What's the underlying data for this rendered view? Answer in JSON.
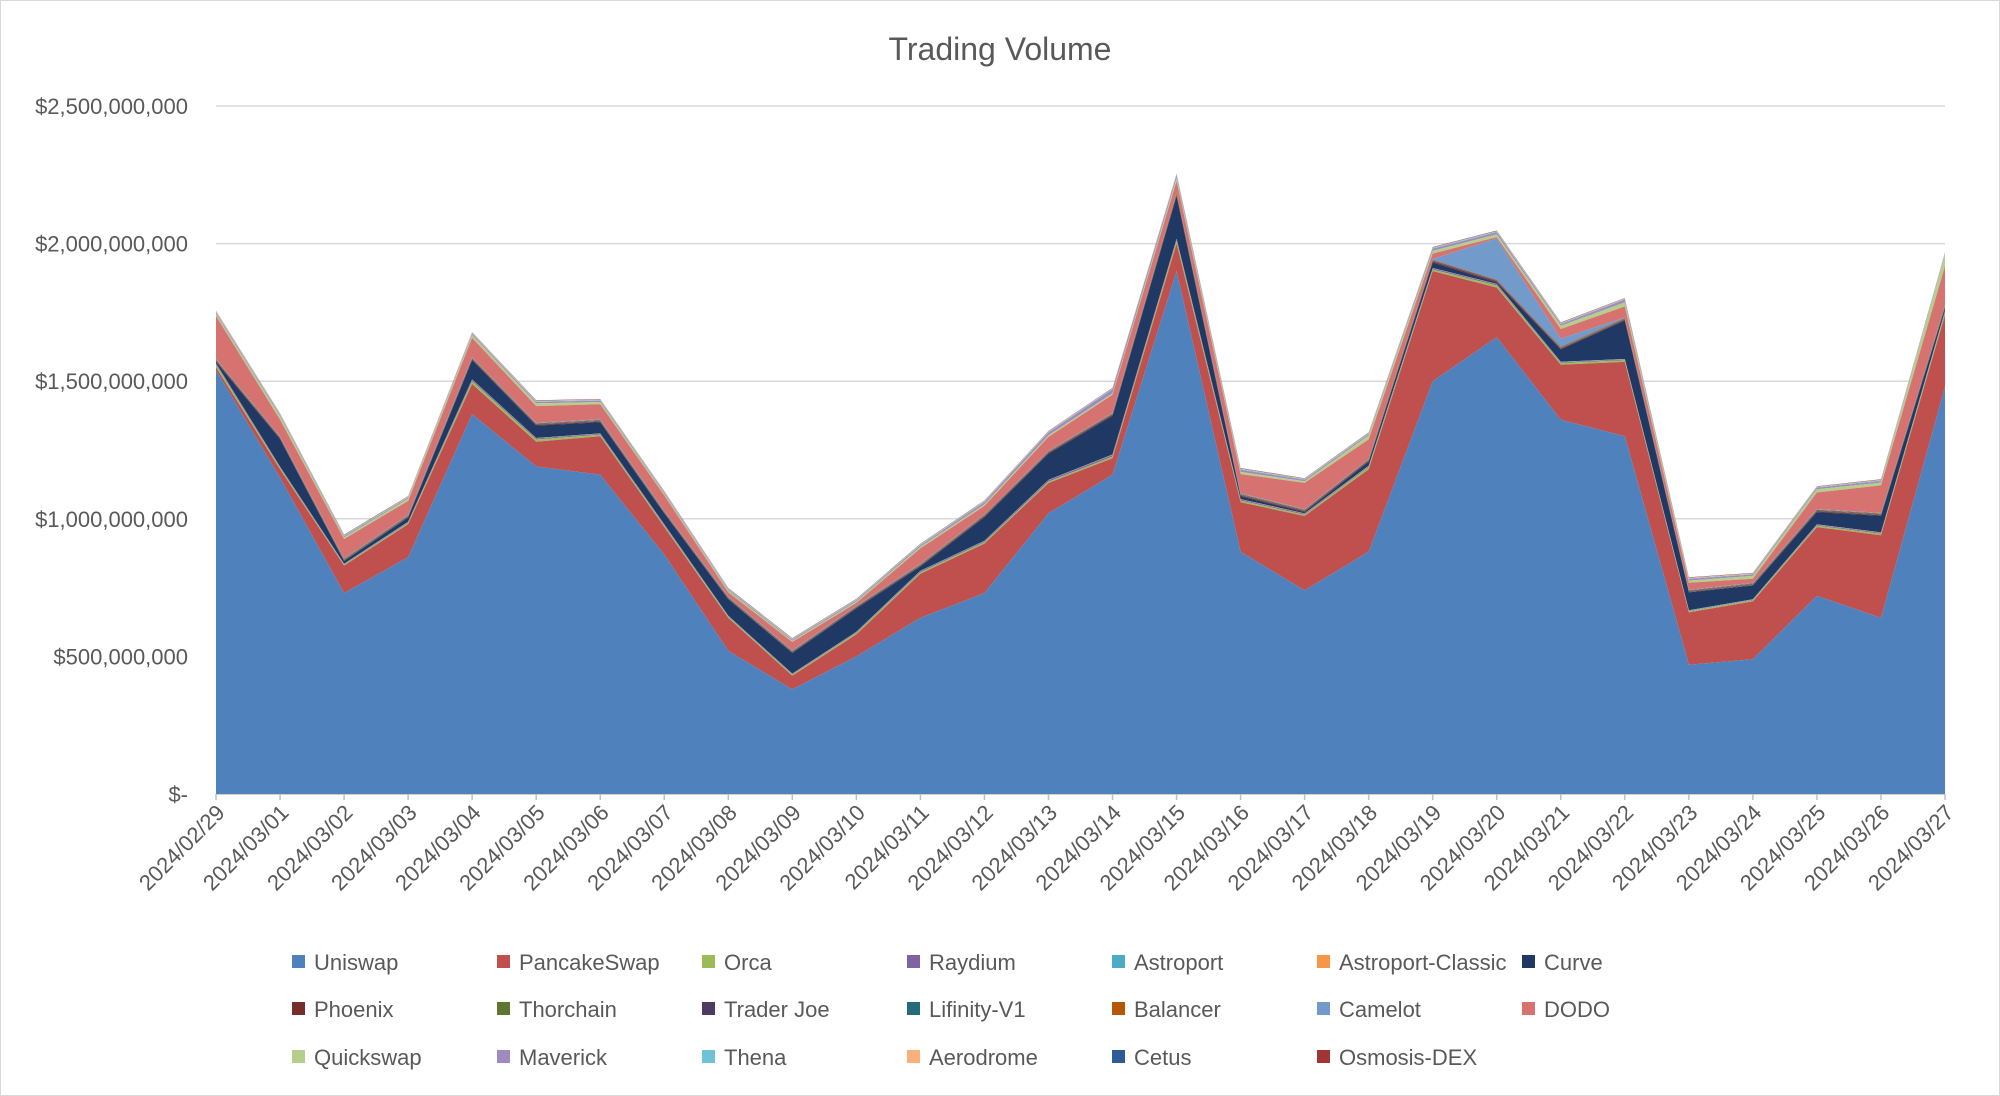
{
  "chart_data": {
    "type": "area",
    "stacked": true,
    "title": "Trading Volume",
    "xlabel": "",
    "ylabel": "",
    "ylim": [
      0,
      2500000000
    ],
    "yticks": [
      0,
      500000000,
      1000000000,
      1500000000,
      2000000000,
      2500000000
    ],
    "ytick_labels": [
      "$-",
      "$500,000,000",
      "$1,000,000,000",
      "$1,500,000,000",
      "$2,000,000,000",
      "$2,500,000,000"
    ],
    "grid": true,
    "legend_position": "bottom",
    "categories": [
      "2024/02/29",
      "2024/03/01",
      "2024/03/02",
      "2024/03/03",
      "2024/03/04",
      "2024/03/05",
      "2024/03/06",
      "2024/03/07",
      "2024/03/08",
      "2024/03/09",
      "2024/03/10",
      "2024/03/11",
      "2024/03/12",
      "2024/03/13",
      "2024/03/14",
      "2024/03/15",
      "2024/03/16",
      "2024/03/17",
      "2024/03/18",
      "2024/03/19",
      "2024/03/20",
      "2024/03/21",
      "2024/03/22",
      "2024/03/23",
      "2024/03/24",
      "2024/03/25",
      "2024/03/26",
      "2024/03/27"
    ],
    "series": [
      {
        "name": "Uniswap",
        "color": "#4f81bd",
        "values": [
          1540000000,
          1150000000,
          730000000,
          860000000,
          1380000000,
          1190000000,
          1160000000,
          870000000,
          520000000,
          380000000,
          500000000,
          640000000,
          730000000,
          1020000000,
          1160000000,
          1900000000,
          880000000,
          740000000,
          880000000,
          1500000000,
          1660000000,
          1360000000,
          1300000000,
          470000000,
          490000000,
          720000000,
          640000000,
          1480000000
        ]
      },
      {
        "name": "PancakeSwap",
        "color": "#c0504d",
        "values": [
          10000000,
          30000000,
          100000000,
          120000000,
          110000000,
          90000000,
          140000000,
          100000000,
          120000000,
          50000000,
          80000000,
          160000000,
          180000000,
          110000000,
          60000000,
          100000000,
          180000000,
          270000000,
          300000000,
          400000000,
          180000000,
          200000000,
          270000000,
          190000000,
          210000000,
          250000000,
          300000000,
          260000000
        ]
      },
      {
        "name": "Orca",
        "color": "#9bbb59",
        "values": [
          10000000,
          5000000,
          3000000,
          5000000,
          10000000,
          8000000,
          6000000,
          5000000,
          4000000,
          4000000,
          5000000,
          6000000,
          5000000,
          5000000,
          6000000,
          10000000,
          6000000,
          5000000,
          8000000,
          6000000,
          8000000,
          6000000,
          6000000,
          4000000,
          4000000,
          5000000,
          6000000,
          10000000
        ]
      },
      {
        "name": "Raydium",
        "color": "#8064a2",
        "values": [
          4000000,
          3000000,
          2000000,
          3000000,
          5000000,
          4000000,
          3000000,
          3000000,
          2000000,
          2000000,
          3000000,
          4000000,
          4000000,
          5000000,
          6000000,
          6000000,
          4000000,
          3000000,
          3000000,
          4000000,
          4000000,
          3000000,
          3000000,
          2000000,
          2000000,
          3000000,
          3000000,
          4000000
        ]
      },
      {
        "name": "Astroport",
        "color": "#4bacc6",
        "values": [
          1000000,
          1000000,
          1000000,
          1000000,
          1000000,
          1000000,
          1000000,
          1000000,
          1000000,
          1000000,
          1000000,
          1000000,
          1000000,
          1000000,
          1000000,
          1000000,
          1000000,
          1000000,
          1000000,
          1000000,
          1000000,
          1000000,
          1000000,
          1000000,
          1000000,
          1000000,
          1000000,
          1000000
        ]
      },
      {
        "name": "Astroport-Classic",
        "color": "#f79646",
        "values": [
          500000,
          500000,
          500000,
          500000,
          500000,
          500000,
          500000,
          500000,
          500000,
          500000,
          500000,
          500000,
          500000,
          500000,
          500000,
          500000,
          500000,
          500000,
          500000,
          500000,
          500000,
          500000,
          500000,
          500000,
          500000,
          500000,
          500000,
          500000
        ]
      },
      {
        "name": "Curve",
        "color": "#1f3864",
        "values": [
          5000000,
          100000000,
          10000000,
          15000000,
          70000000,
          45000000,
          40000000,
          40000000,
          60000000,
          75000000,
          85000000,
          15000000,
          85000000,
          95000000,
          140000000,
          155000000,
          10000000,
          5000000,
          15000000,
          20000000,
          5000000,
          45000000,
          140000000,
          65000000,
          50000000,
          45000000,
          60000000,
          10000000
        ]
      },
      {
        "name": "Phoenix",
        "color": "#772c2a",
        "values": [
          3000000,
          3000000,
          2000000,
          2000000,
          3000000,
          3000000,
          3000000,
          2000000,
          2000000,
          2000000,
          2000000,
          3000000,
          3000000,
          3000000,
          4000000,
          5000000,
          3000000,
          3000000,
          3000000,
          4000000,
          4000000,
          3000000,
          3000000,
          2000000,
          2000000,
          3000000,
          3000000,
          4000000
        ]
      },
      {
        "name": "Thorchain",
        "color": "#5f7530",
        "values": [
          1000000,
          1000000,
          1000000,
          1000000,
          1000000,
          1000000,
          1000000,
          1000000,
          1000000,
          1000000,
          1000000,
          1000000,
          1000000,
          1000000,
          1000000,
          1000000,
          1000000,
          1000000,
          1000000,
          1000000,
          1000000,
          1000000,
          1000000,
          1000000,
          1000000,
          1000000,
          1000000,
          1000000
        ]
      },
      {
        "name": "Trader Joe",
        "color": "#4d3b62",
        "values": [
          2000000,
          2000000,
          2000000,
          2000000,
          2000000,
          2000000,
          2000000,
          2000000,
          2000000,
          2000000,
          2000000,
          2000000,
          2000000,
          2000000,
          2000000,
          2000000,
          2000000,
          2000000,
          2000000,
          2000000,
          2000000,
          2000000,
          2000000,
          2000000,
          2000000,
          2000000,
          2000000,
          2000000
        ]
      },
      {
        "name": "Lifinity-V1",
        "color": "#276a7c",
        "values": [
          1000000,
          1000000,
          1000000,
          1000000,
          1000000,
          1000000,
          1000000,
          1000000,
          1000000,
          1000000,
          1000000,
          1000000,
          1000000,
          1000000,
          1000000,
          1000000,
          1000000,
          1000000,
          1000000,
          1000000,
          1000000,
          1000000,
          1000000,
          1000000,
          1000000,
          1000000,
          1000000,
          1000000
        ]
      },
      {
        "name": "Balancer",
        "color": "#b65708",
        "values": [
          2000000,
          2000000,
          2000000,
          2000000,
          2000000,
          2000000,
          2000000,
          2000000,
          2000000,
          2000000,
          2000000,
          2000000,
          2000000,
          2000000,
          2000000,
          3000000,
          2000000,
          2000000,
          2000000,
          2000000,
          2000000,
          2000000,
          2000000,
          2000000,
          2000000,
          2000000,
          2000000,
          2000000
        ]
      },
      {
        "name": "Camelot",
        "color": "#729aca",
        "values": [
          2000000,
          2000000,
          2000000,
          2000000,
          2000000,
          2000000,
          2000000,
          2000000,
          2000000,
          2000000,
          2000000,
          2000000,
          2000000,
          2000000,
          2000000,
          2000000,
          2000000,
          2000000,
          2000000,
          2000000,
          150000000,
          30000000,
          2000000,
          2000000,
          2000000,
          2000000,
          2000000,
          2000000
        ]
      },
      {
        "name": "DODO",
        "color": "#d6726f",
        "values": [
          155000000,
          60000000,
          70000000,
          50000000,
          70000000,
          60000000,
          55000000,
          55000000,
          15000000,
          30000000,
          10000000,
          55000000,
          30000000,
          50000000,
          65000000,
          40000000,
          70000000,
          95000000,
          70000000,
          20000000,
          5000000,
          35000000,
          40000000,
          25000000,
          15000000,
          60000000,
          100000000,
          140000000
        ]
      },
      {
        "name": "Quickswap",
        "color": "#b3cf89",
        "values": [
          8000000,
          12000000,
          6000000,
          8000000,
          10000000,
          10000000,
          8000000,
          6000000,
          6000000,
          4000000,
          5000000,
          6000000,
          6000000,
          6000000,
          5000000,
          12000000,
          8000000,
          6000000,
          15000000,
          10000000,
          10000000,
          12000000,
          15000000,
          8000000,
          10000000,
          12000000,
          10000000,
          40000000
        ]
      },
      {
        "name": "Maverick",
        "color": "#a08bc0",
        "values": [
          5000000,
          5000000,
          4000000,
          4000000,
          5000000,
          5000000,
          5000000,
          4000000,
          4000000,
          4000000,
          4000000,
          5000000,
          8000000,
          10000000,
          15000000,
          10000000,
          8000000,
          5000000,
          5000000,
          8000000,
          8000000,
          6000000,
          10000000,
          6000000,
          5000000,
          5000000,
          6000000,
          5000000
        ]
      },
      {
        "name": "Thena",
        "color": "#6fc2d8",
        "values": [
          2000000,
          2000000,
          2000000,
          2000000,
          2000000,
          2000000,
          2000000,
          2000000,
          2000000,
          2000000,
          2000000,
          2000000,
          2000000,
          2000000,
          2000000,
          2000000,
          2000000,
          2000000,
          2000000,
          2000000,
          2000000,
          2000000,
          2000000,
          2000000,
          2000000,
          2000000,
          2000000,
          2000000
        ]
      },
      {
        "name": "Aerodrome",
        "color": "#f9b07a",
        "values": [
          2000000,
          2000000,
          2000000,
          2000000,
          2000000,
          2000000,
          2000000,
          2000000,
          2000000,
          2000000,
          2000000,
          2000000,
          2000000,
          2000000,
          2000000,
          2000000,
          2000000,
          2000000,
          2000000,
          2000000,
          2000000,
          2000000,
          2000000,
          2000000,
          2000000,
          2000000,
          2000000,
          2000000
        ]
      },
      {
        "name": "Cetus",
        "color": "#2e5a98",
        "values": [
          1000000,
          1000000,
          1000000,
          1000000,
          1000000,
          1000000,
          1000000,
          1000000,
          1000000,
          1000000,
          1000000,
          1000000,
          1000000,
          1000000,
          1000000,
          1000000,
          1000000,
          1000000,
          1000000,
          1000000,
          1000000,
          1000000,
          1000000,
          1000000,
          1000000,
          1000000,
          1000000,
          1000000
        ]
      },
      {
        "name": "Osmosis-DEX",
        "color": "#a03533",
        "values": [
          1000000,
          1000000,
          1000000,
          1000000,
          1000000,
          1000000,
          1000000,
          1000000,
          1000000,
          1000000,
          1000000,
          1000000,
          1000000,
          1000000,
          1000000,
          1000000,
          1000000,
          1000000,
          1000000,
          1000000,
          1000000,
          1000000,
          1000000,
          1000000,
          1000000,
          1000000,
          1000000,
          1000000
        ]
      }
    ]
  }
}
